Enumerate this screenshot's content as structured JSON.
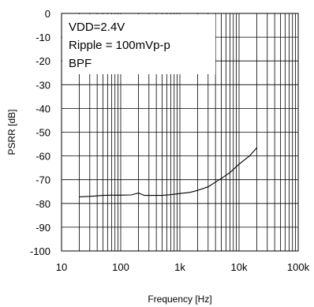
{
  "chart_data": {
    "type": "line",
    "xlabel": "Frequency [Hz]",
    "ylabel": "PSRR [dB]",
    "xscale": "log",
    "xlim": [
      10,
      100000
    ],
    "ylim": [
      -100,
      0
    ],
    "grid": true,
    "x_ticks": [
      10,
      100,
      1000,
      10000,
      100000
    ],
    "x_tick_labels": [
      "10",
      "100",
      "1k",
      "10k",
      "100k"
    ],
    "y_ticks": [
      0,
      -10,
      -20,
      -30,
      -40,
      -50,
      -60,
      -70,
      -80,
      -90,
      -100
    ],
    "y_tick_labels": [
      "0",
      "-10",
      "-20",
      "-30",
      "-40",
      "-50",
      "-60",
      "-70",
      "-80",
      "-90",
      "-100"
    ],
    "annotations": [
      "VDD=2.4V",
      "Ripple = 100mVp-p",
      "BPF"
    ],
    "line_color": "#000000",
    "series": [
      {
        "x": [
          20,
          30,
          50,
          70,
          100,
          150,
          200,
          250,
          300,
          500,
          700,
          1000,
          1500,
          2000,
          3000,
          4000,
          5000,
          7000,
          10000,
          15000,
          20000
        ],
        "values": [
          -77.2,
          -77.0,
          -76.6,
          -76.5,
          -76.5,
          -76.4,
          -75.6,
          -76.6,
          -76.6,
          -76.6,
          -76.3,
          -75.8,
          -75.3,
          -74.5,
          -73.0,
          -71.0,
          -69.5,
          -67.0,
          -63.5,
          -60.0,
          -56.5
        ]
      }
    ]
  }
}
